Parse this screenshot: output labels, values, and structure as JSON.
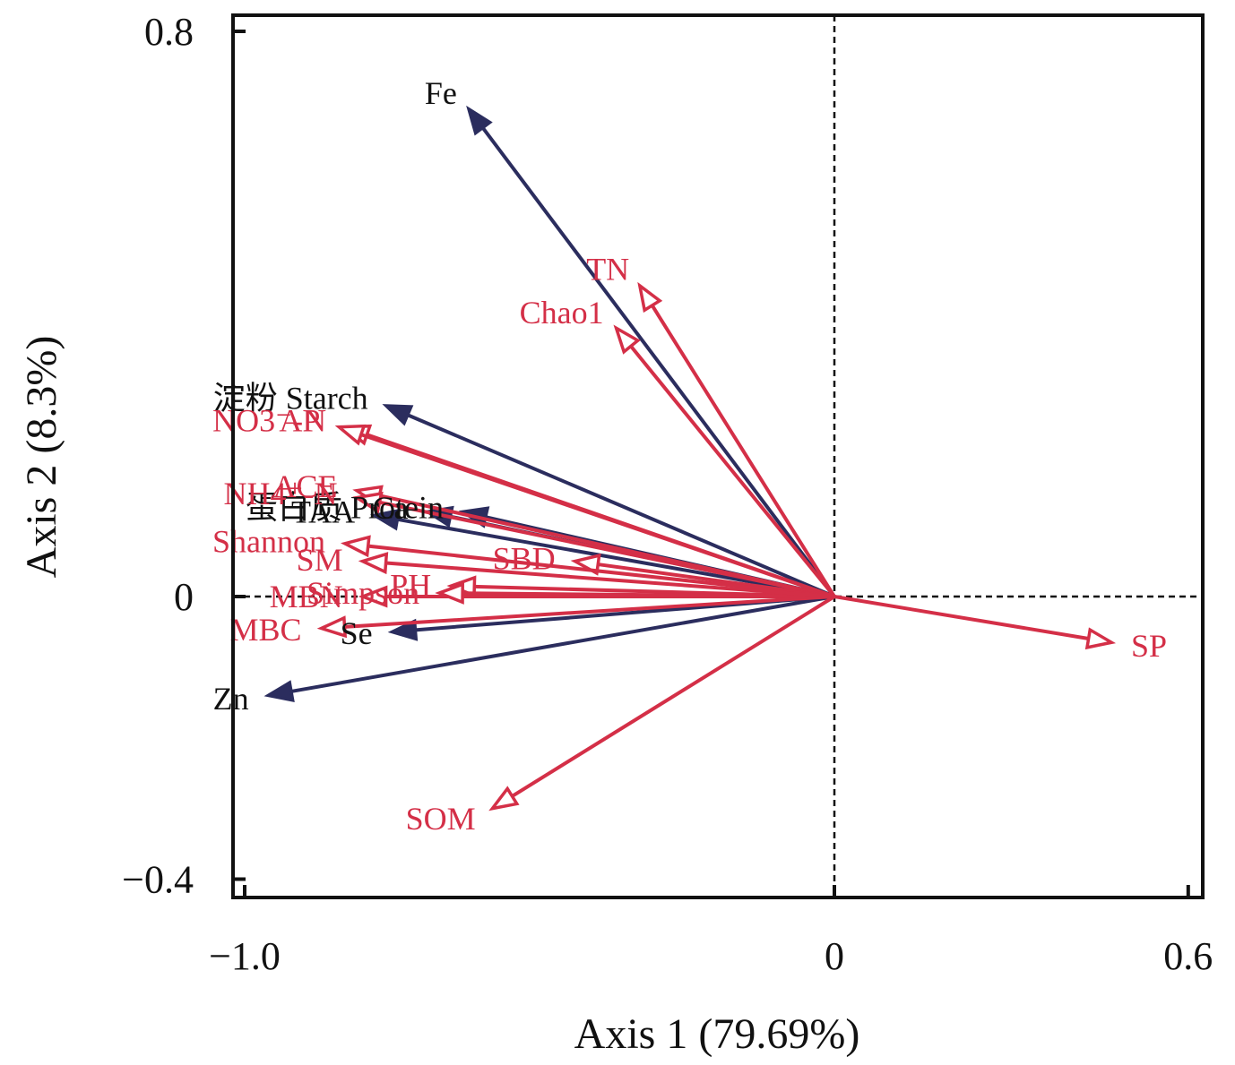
{
  "chart_data": {
    "type": "biplot",
    "xlabel": "Axis 1 (79.69%)",
    "ylabel": "Axis 2 (8.3%)",
    "xlim": [
      -1.0,
      0.6
    ],
    "ylim": [
      -0.4,
      0.8
    ],
    "x_ticks": [
      {
        "value": -1.0,
        "label": "−1.0"
      },
      {
        "value": 0,
        "label": "0"
      },
      {
        "value": 0.6,
        "label": "0.6"
      }
    ],
    "y_ticks": [
      {
        "value": 0.8,
        "label": "0.8"
      },
      {
        "value": 0,
        "label": "0"
      },
      {
        "value": -0.4,
        "label": "−0.4"
      }
    ],
    "grid": false,
    "zero_lines": "dashed",
    "colors": {
      "filled": "#2b2d5e",
      "hollow": "#d42f47"
    },
    "filled_arrows": [
      {
        "label": "Fe",
        "x": -0.62,
        "y": 0.69
      },
      {
        "label": "淀粉 Starch",
        "x": -0.76,
        "y": 0.27
      },
      {
        "label": "蛋白质 Protein",
        "x": -0.63,
        "y": 0.12
      },
      {
        "label": "Ca",
        "x": -0.69,
        "y": 0.12
      },
      {
        "label": "TAA",
        "x": -0.78,
        "y": 0.115
      },
      {
        "label": "Se",
        "x": -0.75,
        "y": -0.05
      },
      {
        "label": "Zn",
        "x": -0.96,
        "y": -0.14
      }
    ],
    "hollow_arrows": [
      {
        "label": "TN",
        "x": -0.33,
        "y": 0.44
      },
      {
        "label": "Chao1",
        "x": -0.37,
        "y": 0.38
      },
      {
        "label": "NO3⁻-N",
        "x": -0.83,
        "y": 0.24
      },
      {
        "label": "AP",
        "x": -0.84,
        "y": 0.24
      },
      {
        "label": "ACE",
        "x": -0.81,
        "y": 0.15
      },
      {
        "label": "NH4⁺-N",
        "x": -0.81,
        "y": 0.14
      },
      {
        "label": "SBD",
        "x": -0.44,
        "y": 0.05
      },
      {
        "label": "Shannon",
        "x": -0.83,
        "y": 0.075
      },
      {
        "label": "MBN",
        "x": -0.8,
        "y": 0.0
      },
      {
        "label": "PH",
        "x": -0.65,
        "y": 0.015
      },
      {
        "label": "Simpson",
        "x": -0.67,
        "y": 0.005
      },
      {
        "label": "MBC",
        "x": -0.87,
        "y": -0.045
      },
      {
        "label": "SM",
        "x": -0.8,
        "y": 0.05
      },
      {
        "label": "SOM",
        "x": -0.58,
        "y": -0.3
      },
      {
        "label": "SP",
        "x": 0.47,
        "y": -0.065
      }
    ]
  }
}
